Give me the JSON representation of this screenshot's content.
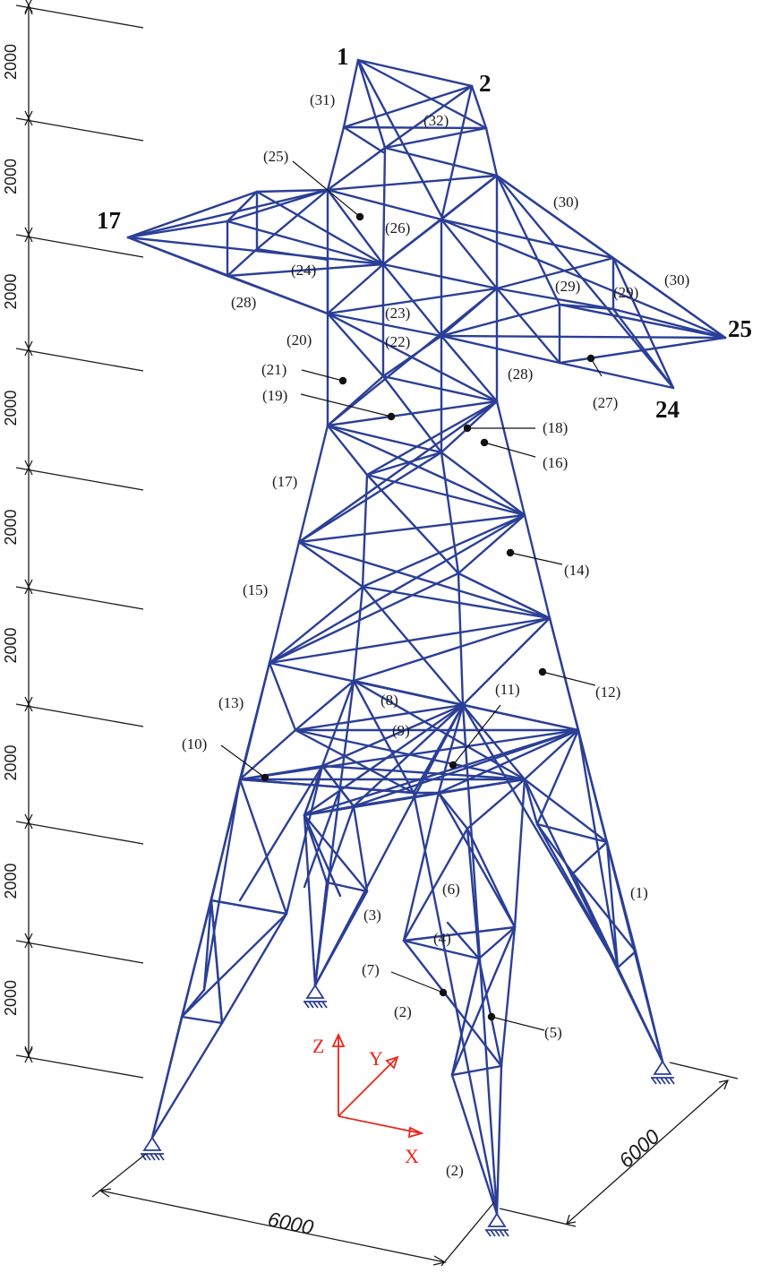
{
  "dimensions": {
    "level_label": "2000",
    "base_x": "6000",
    "base_y": "6000"
  },
  "node_labels": [
    "1",
    "2",
    "17",
    "25",
    "24"
  ],
  "member_labels": [
    "(31)",
    "(32)",
    "(25)",
    "(26)",
    "(30)",
    "(24)",
    "(29)",
    "(29)",
    "(30)",
    "(28)",
    "(23)",
    "(20)",
    "(22)",
    "(21)",
    "(28)",
    "(27)",
    "(19)",
    "(18)",
    "(16)",
    "(17)",
    "(14)",
    "(15)",
    "(8)",
    "(11)",
    "(12)",
    "(13)",
    "(9)",
    "(10)",
    "(6)",
    "(1)",
    "(3)",
    "(4)",
    "(7)",
    "(2)",
    "(5)",
    "(2)"
  ],
  "axes": {
    "z": "Z",
    "y": "Y",
    "x": "X"
  },
  "colors": {
    "member": "#2b3f96",
    "axis": "#e8261b",
    "text": "#1a1a1a"
  },
  "icons": [
    "pinned-support-icon"
  ]
}
